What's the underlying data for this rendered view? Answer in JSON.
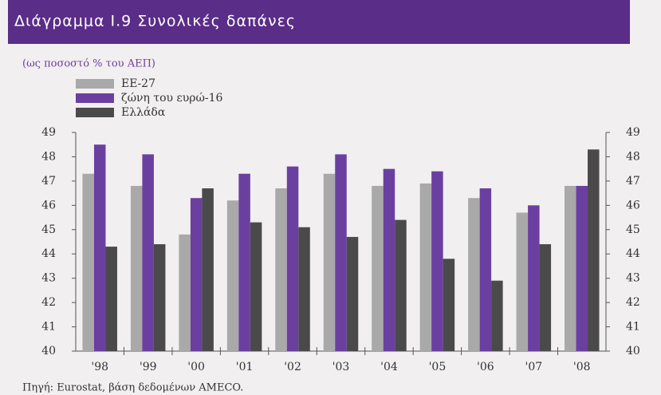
{
  "chart_data": {
    "type": "bar",
    "title": "Διάγραμμα I.9  Συνολικές δαπάνες",
    "subtitle": "(ως ποσοστό % του ΑΕΠ)",
    "source": "Πηγή: Eurostat, βάση δεδομένων AMECO.",
    "categories": [
      "'98",
      "'99",
      "'00",
      "'01",
      "'02",
      "'03",
      "'04",
      "'05",
      "'06",
      "'07",
      "'08"
    ],
    "series": [
      {
        "name": "ΕΕ-27",
        "color": "#a9a9a9",
        "values": [
          47.3,
          46.8,
          44.8,
          46.2,
          46.7,
          47.3,
          46.8,
          46.9,
          46.3,
          45.7,
          46.8
        ]
      },
      {
        "name": "ζώνη του ευρώ-16",
        "color": "#6b3fa0",
        "values": [
          48.5,
          48.1,
          46.3,
          47.3,
          47.6,
          48.1,
          47.5,
          47.4,
          46.7,
          46.0,
          46.8
        ]
      },
      {
        "name": "Ελλάδα",
        "color": "#4a4a4a",
        "values": [
          44.3,
          44.4,
          46.7,
          45.3,
          45.1,
          44.7,
          45.4,
          43.8,
          42.9,
          44.4,
          48.3
        ]
      }
    ],
    "ylim": [
      40,
      49
    ],
    "yticks": [
      40,
      41,
      42,
      43,
      44,
      45,
      46,
      47,
      48,
      49
    ]
  }
}
